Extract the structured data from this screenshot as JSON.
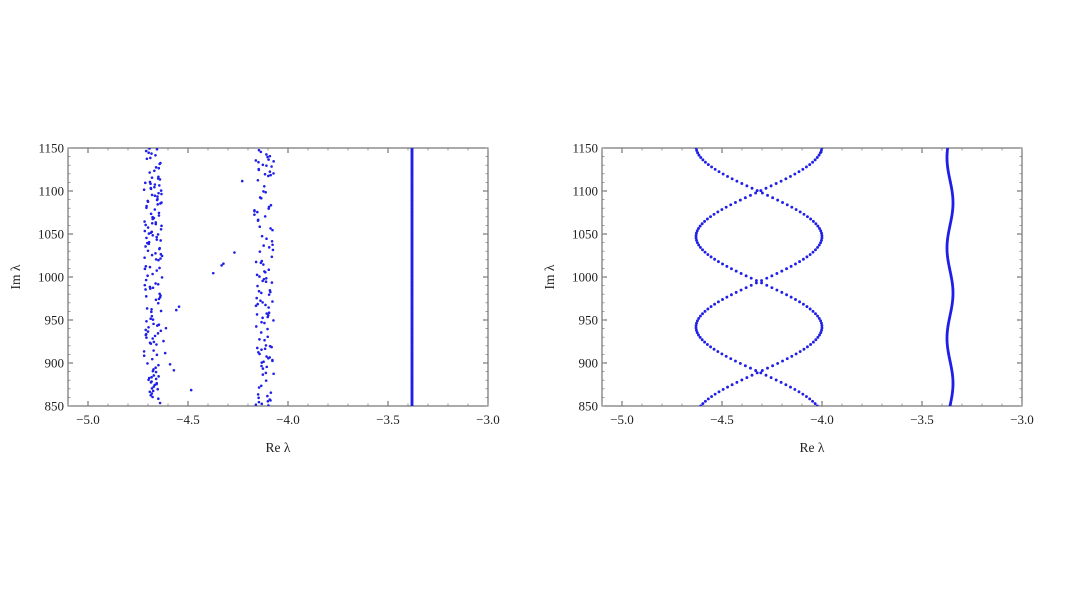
{
  "chart_data": [
    {
      "type": "scatter",
      "xlabel": "Re λ",
      "ylabel": "Im λ",
      "xlim": [
        -5.1,
        -3.0
      ],
      "ylim": [
        850,
        1150
      ],
      "x_ticks": [
        "-5.0",
        "-4.5",
        "-4.0",
        "-3.5",
        "-3.0"
      ],
      "x_tick_values": [
        -5.0,
        -4.5,
        -4.0,
        -3.5,
        -3.0
      ],
      "y_ticks": [
        "850",
        "900",
        "950",
        "1000",
        "1050",
        "1100",
        "1150"
      ],
      "y_tick_values": [
        850,
        900,
        950,
        1000,
        1050,
        1100,
        1150
      ],
      "grid": false,
      "marker_color": "#1f1fe8",
      "series": [
        {
          "kind": "scattered-band",
          "x_range": [
            -4.72,
            -4.07
          ],
          "y_range": [
            850,
            1150
          ],
          "n_points": 300
        },
        {
          "kind": "vertical-line",
          "x": -3.38,
          "y_range": [
            850,
            1150
          ],
          "n_points": 150
        }
      ]
    },
    {
      "type": "scatter",
      "xlabel": "Re λ",
      "ylabel": "Im λ",
      "xlim": [
        -5.1,
        -3.0
      ],
      "ylim": [
        850,
        1150
      ],
      "x_ticks": [
        "-5.0",
        "-4.5",
        "-4.0",
        "-3.5",
        "-3.0"
      ],
      "x_tick_values": [
        -5.0,
        -4.5,
        -4.0,
        -3.5,
        -3.0
      ],
      "y_ticks": [
        "850",
        "900",
        "950",
        "1000",
        "1050",
        "1100",
        "1150"
      ],
      "y_tick_values": [
        850,
        900,
        950,
        1000,
        1050,
        1100,
        1150
      ],
      "grid": false,
      "marker_color": "#1f1fe8",
      "series": [
        {
          "kind": "braided-curves",
          "center_x": -4.315,
          "amplitude": 0.315,
          "period": 210,
          "phase_y": 1047,
          "y_range": [
            850,
            1150
          ],
          "n_points": 110
        },
        {
          "kind": "wavy-line",
          "center_x": -3.36,
          "amplitude": 0.015,
          "period": 105,
          "y_range": [
            850,
            1150
          ],
          "n_points": 170
        }
      ]
    }
  ]
}
